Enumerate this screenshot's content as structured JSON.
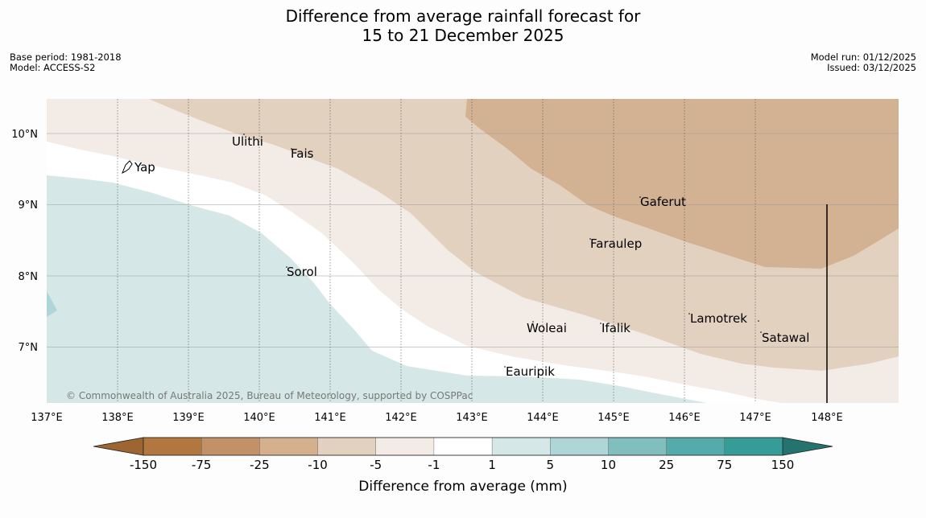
{
  "title": {
    "line1": "Difference from average rainfall forecast for",
    "line2": "15 to 21 December 2025"
  },
  "meta_left": {
    "base_period": "Base period: 1981-2018",
    "model": "Model: ACCESS-S2"
  },
  "meta_right": {
    "model_run": "Model run: 01/12/2025",
    "issued": "Issued: 03/12/2025"
  },
  "map": {
    "lon_labels": [
      "137°E",
      "138°E",
      "139°E",
      "140°E",
      "141°E",
      "142°E",
      "143°E",
      "144°E",
      "145°E",
      "146°E",
      "147°E",
      "148°E"
    ],
    "lat_labels": [
      "10°N",
      "9°N",
      "8°N",
      "7°N"
    ],
    "places": {
      "ulithi": "Ulithi",
      "fais": "Fais",
      "yap": "Yap",
      "gaferut": "Gaferut",
      "faraulep": "Faraulep",
      "sorol": "Sorol",
      "lamotrek": "Lamotrek",
      "woleai": "Woleai",
      "ifalik": "Ifalik",
      "satawal": "Satawal",
      "eauripik": "Eauripik"
    },
    "copyright": "© Commonwealth of Australia 2025, Bureau of Meteorology, supported by COSPPac"
  },
  "colorbar": {
    "ticks": [
      "-150",
      "-75",
      "-25",
      "-10",
      "-5",
      "-1",
      "1",
      "5",
      "10",
      "25",
      "75",
      "150"
    ],
    "colors": [
      "#9c6531",
      "#b1773e",
      "#c29167",
      "#d4b08f",
      "#e3d1c0",
      "#f3ece6",
      "#ffffff",
      "#d5e8e7",
      "#aed6d6",
      "#80bfbd",
      "#55abaa",
      "#369c98",
      "#25736e"
    ],
    "label": "Difference from average (mm)"
  }
}
